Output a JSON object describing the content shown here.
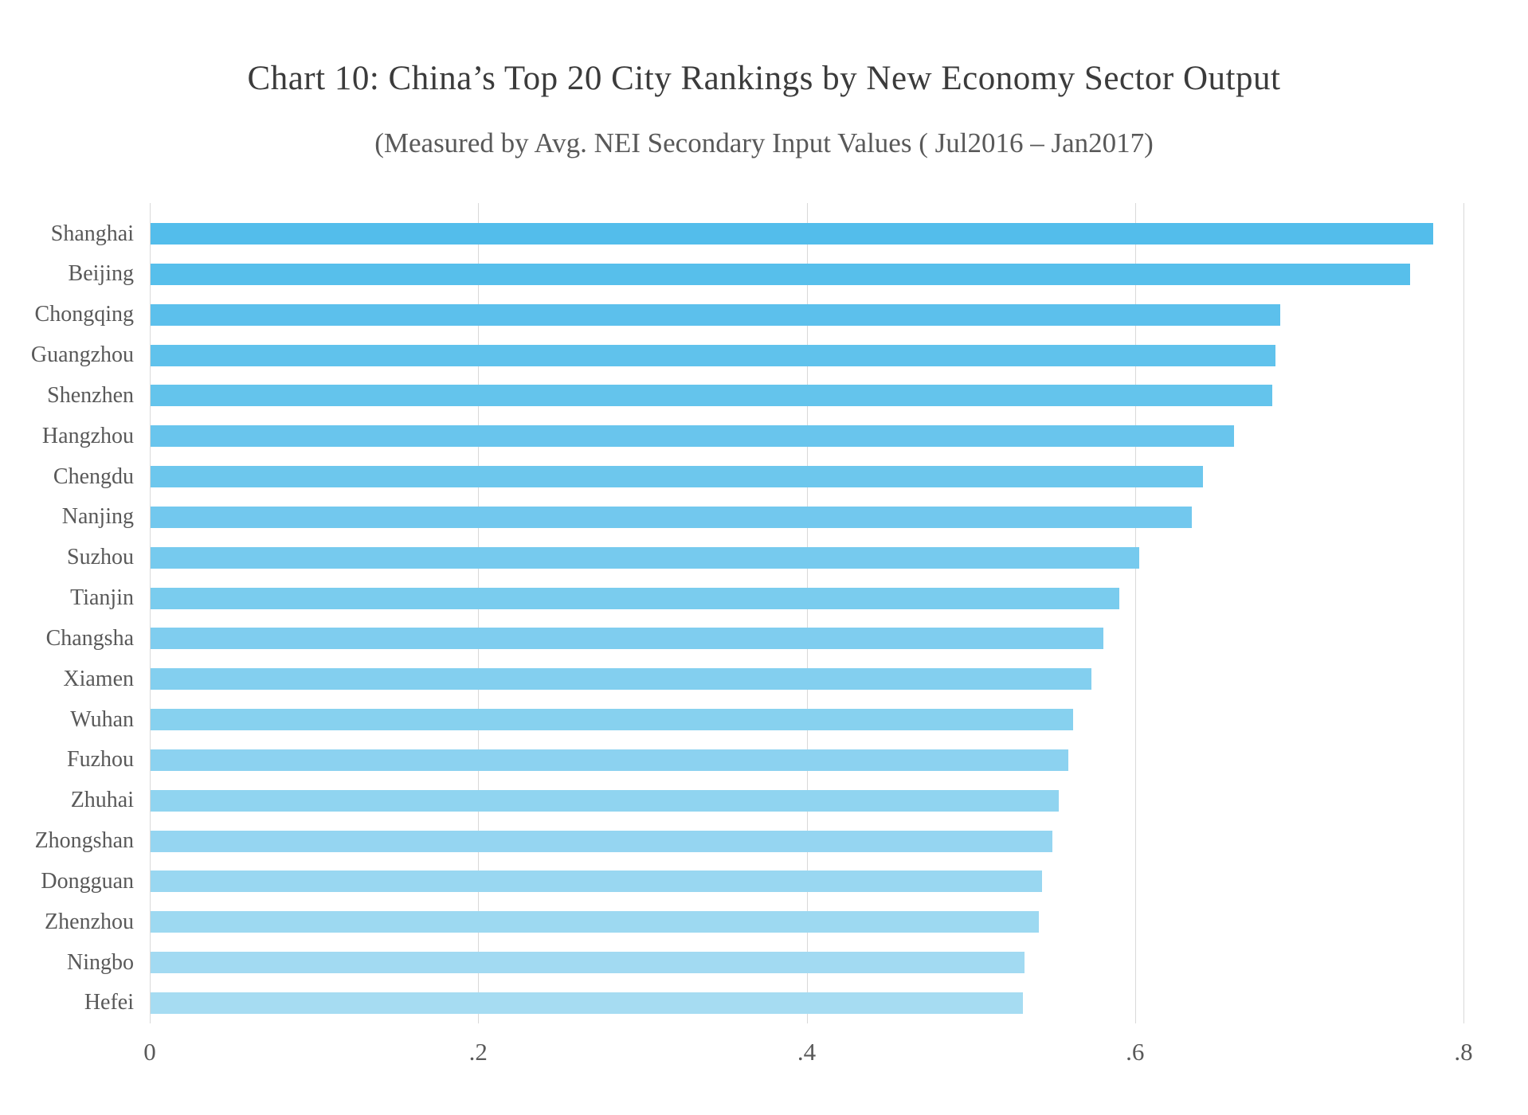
{
  "header": {
    "title": "Chart 10: China’s Top 20 City Rankings by New Economy Sector Output",
    "subtitle": "(Measured by Avg. NEI Secondary Input Values ( Jul2016 – Jan2017)"
  },
  "chart_data": {
    "type": "bar",
    "orientation": "horizontal",
    "title": "Chart 10: China’s Top 20 City Rankings by New Economy Sector Output",
    "subtitle": "(Measured by Avg. NEI Secondary Input Values ( Jul2016 – Jan2017)",
    "categories": [
      "Shanghai",
      "Beijing",
      "Chongqing",
      "Guangzhou",
      "Shenzhen",
      "Hangzhou",
      "Chengdu",
      "Nanjing",
      "Suzhou",
      "Tianjin",
      "Changsha",
      "Xiamen",
      "Wuhan",
      "Fuzhou",
      "Zhuhai",
      "Zhongshan",
      "Dongguan",
      "Zhenzhou",
      "Ningbo",
      "Hefei"
    ],
    "values": [
      0.781,
      0.767,
      0.688,
      0.685,
      0.683,
      0.66,
      0.641,
      0.634,
      0.602,
      0.59,
      0.58,
      0.573,
      0.562,
      0.559,
      0.553,
      0.549,
      0.543,
      0.541,
      0.532,
      0.531
    ],
    "x_ticks": [
      "0",
      ".2",
      ".4",
      ".6",
      ".8"
    ],
    "x_tick_values": [
      0,
      0.2,
      0.4,
      0.6,
      0.8
    ],
    "xlim": [
      0,
      0.8
    ],
    "xlabel": "",
    "ylabel": "",
    "grid": "vertical-only",
    "legend": "none",
    "bar_color_top": "#53bdeb",
    "bar_color_bottom": "#a6dcf2",
    "gridline_color": "#d9d9d9",
    "axis_label_color": "#595959",
    "title_color": "#3b3b3b"
  }
}
